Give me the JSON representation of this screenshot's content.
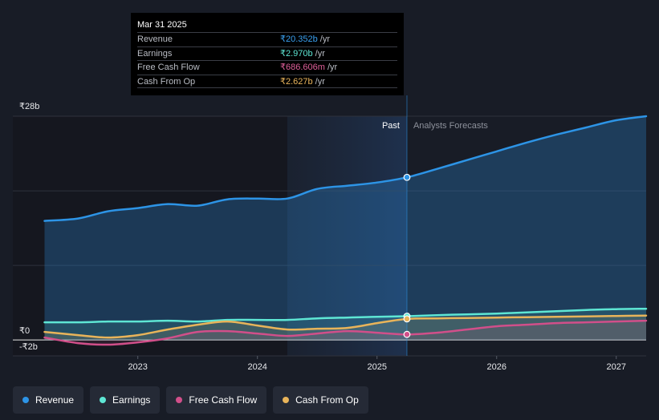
{
  "colors": {
    "background": "#181c26",
    "revenue": "#2d94e6",
    "earnings": "#5ee6d4",
    "free_cash_flow": "#d14f8a",
    "cash_from_op": "#e8b45a",
    "grid": "#2e323c"
  },
  "tooltip": {
    "date": "Mar 31 2025",
    "rows": [
      {
        "label": "Revenue",
        "value": "₹20.352b",
        "unit": "/yr",
        "color": "#3aa0f0"
      },
      {
        "label": "Earnings",
        "value": "₹2.970b",
        "unit": "/yr",
        "color": "#5ee6d4"
      },
      {
        "label": "Free Cash Flow",
        "value": "₹686.606m",
        "unit": "/yr",
        "color": "#e0609a"
      },
      {
        "label": "Cash From Op",
        "value": "₹2.627b",
        "unit": "/yr",
        "color": "#eab55c"
      }
    ]
  },
  "chart_data": {
    "type": "line",
    "y_unit": "₹ billions",
    "ylim": [
      -2,
      28
    ],
    "y_tick_labels": [
      {
        "value": 28,
        "label": "₹28b"
      },
      {
        "value": 0,
        "label": "₹0"
      },
      {
        "value": -2,
        "label": "-₹2b"
      }
    ],
    "xlim": [
      2022.17,
      2027.25
    ],
    "x_ticks": [
      {
        "value": 2023,
        "label": "2023"
      },
      {
        "value": 2024,
        "label": "2024"
      },
      {
        "value": 2025,
        "label": "2025"
      },
      {
        "value": 2026,
        "label": "2026"
      },
      {
        "value": 2027,
        "label": "2027"
      }
    ],
    "past_start": 2024.25,
    "divider": 2025.25,
    "past_label": "Past",
    "forecast_label": "Analysts Forecasts",
    "series": [
      {
        "name": "Revenue",
        "key": "revenue",
        "color": "#2d94e6",
        "marker_at": 2025.25,
        "points": [
          [
            2022.22,
            14.9
          ],
          [
            2022.5,
            15.2
          ],
          [
            2022.75,
            16.1
          ],
          [
            2023.0,
            16.5
          ],
          [
            2023.25,
            17.0
          ],
          [
            2023.5,
            16.8
          ],
          [
            2023.75,
            17.6
          ],
          [
            2024.0,
            17.7
          ],
          [
            2024.25,
            17.7
          ],
          [
            2024.5,
            18.9
          ],
          [
            2024.75,
            19.3
          ],
          [
            2025.0,
            19.7
          ],
          [
            2025.25,
            20.35
          ],
          [
            2025.5,
            21.4
          ],
          [
            2025.75,
            22.5
          ],
          [
            2026.0,
            23.6
          ],
          [
            2026.25,
            24.7
          ],
          [
            2026.5,
            25.7
          ],
          [
            2026.75,
            26.6
          ],
          [
            2027.0,
            27.5
          ],
          [
            2027.25,
            28.0
          ]
        ]
      },
      {
        "name": "Earnings",
        "key": "earnings",
        "color": "#5ee6d4",
        "marker_at": 2025.25,
        "points": [
          [
            2022.22,
            2.2
          ],
          [
            2022.5,
            2.2
          ],
          [
            2022.75,
            2.3
          ],
          [
            2023.0,
            2.3
          ],
          [
            2023.25,
            2.4
          ],
          [
            2023.5,
            2.3
          ],
          [
            2023.75,
            2.5
          ],
          [
            2024.0,
            2.5
          ],
          [
            2024.25,
            2.5
          ],
          [
            2024.5,
            2.7
          ],
          [
            2024.75,
            2.8
          ],
          [
            2025.0,
            2.9
          ],
          [
            2025.25,
            2.97
          ],
          [
            2025.5,
            3.1
          ],
          [
            2025.75,
            3.2
          ],
          [
            2026.0,
            3.3
          ],
          [
            2026.25,
            3.45
          ],
          [
            2026.5,
            3.6
          ],
          [
            2026.75,
            3.75
          ],
          [
            2027.0,
            3.85
          ],
          [
            2027.25,
            3.9
          ]
        ]
      },
      {
        "name": "Free Cash Flow",
        "key": "free_cash_flow",
        "color": "#d14f8a",
        "marker_at": 2025.25,
        "points": [
          [
            2022.22,
            0.3
          ],
          [
            2022.5,
            -0.4
          ],
          [
            2022.75,
            -0.6
          ],
          [
            2023.0,
            -0.3
          ],
          [
            2023.25,
            0.2
          ],
          [
            2023.5,
            1.0
          ],
          [
            2023.75,
            1.1
          ],
          [
            2024.0,
            0.8
          ],
          [
            2024.25,
            0.5
          ],
          [
            2024.5,
            0.8
          ],
          [
            2024.75,
            1.1
          ],
          [
            2025.0,
            0.9
          ],
          [
            2025.25,
            0.69
          ],
          [
            2025.5,
            0.9
          ],
          [
            2025.75,
            1.3
          ],
          [
            2026.0,
            1.7
          ],
          [
            2026.25,
            1.9
          ],
          [
            2026.5,
            2.1
          ],
          [
            2026.75,
            2.2
          ],
          [
            2027.0,
            2.3
          ],
          [
            2027.25,
            2.4
          ]
        ]
      },
      {
        "name": "Cash From Op",
        "key": "cash_from_op",
        "color": "#e8b45a",
        "marker_at": 2025.25,
        "points": [
          [
            2022.22,
            1.0
          ],
          [
            2022.5,
            0.6
          ],
          [
            2022.75,
            0.3
          ],
          [
            2023.0,
            0.6
          ],
          [
            2023.25,
            1.3
          ],
          [
            2023.5,
            1.9
          ],
          [
            2023.75,
            2.3
          ],
          [
            2024.0,
            1.8
          ],
          [
            2024.25,
            1.3
          ],
          [
            2024.5,
            1.4
          ],
          [
            2024.75,
            1.5
          ],
          [
            2025.0,
            2.1
          ],
          [
            2025.25,
            2.63
          ],
          [
            2025.5,
            2.7
          ],
          [
            2025.75,
            2.75
          ],
          [
            2026.0,
            2.8
          ],
          [
            2026.25,
            2.85
          ],
          [
            2026.5,
            2.9
          ],
          [
            2026.75,
            2.95
          ],
          [
            2027.0,
            3.0
          ],
          [
            2027.25,
            3.05
          ]
        ]
      }
    ]
  },
  "legend": [
    {
      "label": "Revenue",
      "color": "#2d94e6"
    },
    {
      "label": "Earnings",
      "color": "#5ee6d4"
    },
    {
      "label": "Free Cash Flow",
      "color": "#d14f8a"
    },
    {
      "label": "Cash From Op",
      "color": "#e8b45a"
    }
  ]
}
